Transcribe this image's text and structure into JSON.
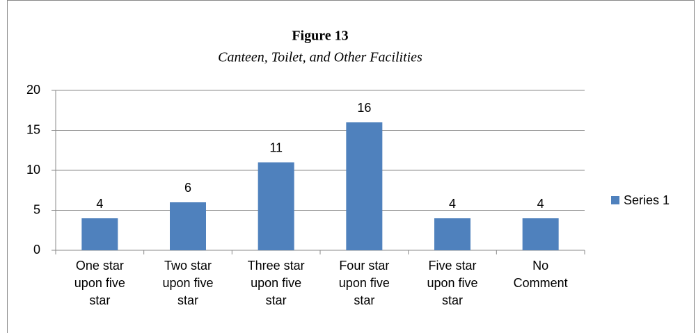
{
  "chart_data": {
    "type": "bar",
    "title": "Figure 13",
    "subtitle": "Canteen, Toilet, and Other Facilities",
    "categories": [
      "One star upon five star",
      "Two star upon five star",
      "Three star upon five star",
      "Four star upon five star",
      "Five star upon five star",
      "No Comment"
    ],
    "series": [
      {
        "name": "Series 1",
        "color": "#4f81bd",
        "values": [
          4,
          6,
          11,
          16,
          4,
          4
        ]
      }
    ],
    "ylim": [
      0,
      20
    ],
    "yticks": [
      0,
      5,
      10,
      15,
      20
    ],
    "grid": true,
    "legend": "right"
  }
}
